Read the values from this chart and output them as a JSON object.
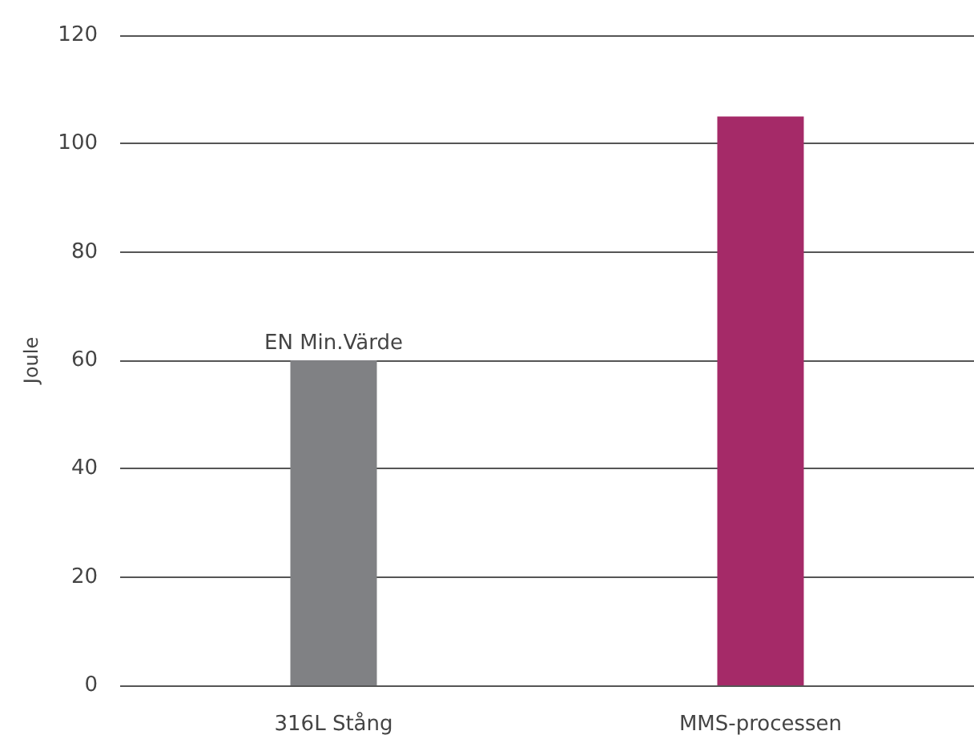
{
  "chart_data": {
    "type": "bar",
    "ylabel": "Joule",
    "categories": [
      "316L Stång",
      "MMS-processen"
    ],
    "values": [
      60,
      105
    ],
    "colors": [
      "#808184",
      "#a52a68"
    ],
    "ylim": [
      0,
      120
    ],
    "yticks": [
      0,
      20,
      40,
      60,
      80,
      100,
      120
    ],
    "grid": "y",
    "annotations": [
      {
        "text": "EN Min.Värde",
        "x": "316L Stång",
        "y": 60
      }
    ]
  }
}
